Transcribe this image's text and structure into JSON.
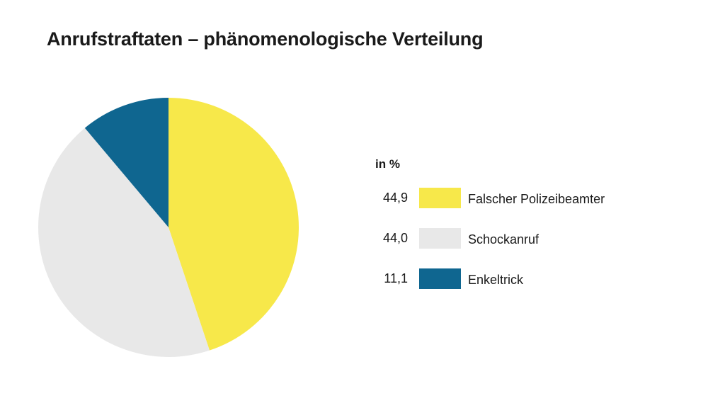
{
  "title": "Anrufstraftaten – phänomenologische Verteilung",
  "chart_data": {
    "type": "pie",
    "title": "Anrufstraftaten – phänomenologische Verteilung",
    "legend_title": "in %",
    "legend_position": "right",
    "start_angle_deg": 0,
    "direction": "clockwise",
    "slices": [
      {
        "label": "Falscher Polizeibeamter",
        "value": 44.9,
        "value_label": "44,9",
        "color": "#F7E84A"
      },
      {
        "label": "Schockanruf",
        "value": 44.0,
        "value_label": "44,0",
        "color": "#E8E8E8"
      },
      {
        "label": "Enkeltrick",
        "value": 11.1,
        "value_label": "11,1",
        "color": "#0F6690"
      }
    ]
  }
}
